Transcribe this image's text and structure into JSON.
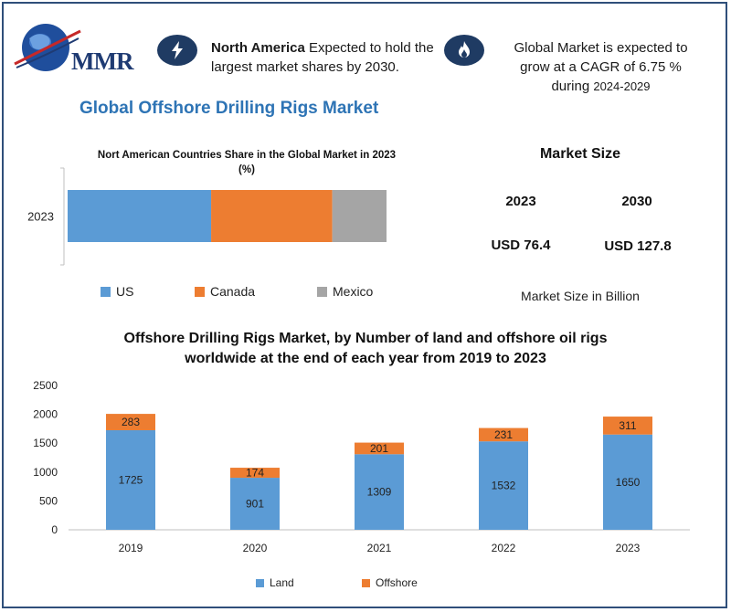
{
  "header": {
    "logo_text": "MMR",
    "highlight_left": {
      "bold": "North America",
      "rest": " Expected to hold the largest market shares by 2030."
    },
    "highlight_right": {
      "line1": "Global Market is expected to",
      "line2": "grow at a CAGR of 6.75 %",
      "line3a": "during ",
      "line3b": "2024-2029"
    }
  },
  "main_title": "Global Offshore Drilling Rigs Market",
  "market_size": {
    "heading": "Market Size",
    "year_a": "2023",
    "year_b": "2030",
    "value_a": "USD 76.4",
    "value_b": "USD 127.8",
    "note": "Market Size in Billion"
  },
  "colors": {
    "us": "#5b9bd5",
    "canada": "#ed7d31",
    "mexico": "#a5a5a5",
    "land": "#5b9bd5",
    "offshore": "#ed7d31",
    "title_blue": "#2e74b5",
    "badge": "#1f3b63"
  },
  "icons": {
    "logo": "globe-icon",
    "left_badge": "lightning-icon",
    "right_badge": "flame-icon"
  },
  "chart_data": [
    {
      "type": "bar",
      "orientation": "horizontal",
      "stacked": true,
      "title_line1": "Nort American Countries Share in the Global Market in 2023",
      "title_line2": "(%)",
      "categories": [
        "2023"
      ],
      "series": [
        {
          "name": "US",
          "values": [
            45
          ]
        },
        {
          "name": "Canada",
          "values": [
            38
          ]
        },
        {
          "name": "Mexico",
          "values": [
            17
          ]
        }
      ],
      "xlim": [
        0,
        100
      ],
      "legend": "bottom"
    },
    {
      "type": "bar",
      "stacked": true,
      "title_line1": "Offshore Drilling Rigs Market, by Number of land and offshore oil rigs",
      "title_line2": "worldwide at the end of each year from 2019 to 2023",
      "categories": [
        "2019",
        "2020",
        "2021",
        "2022",
        "2023"
      ],
      "series": [
        {
          "name": "Land",
          "values": [
            1725,
            901,
            1309,
            1532,
            1650
          ]
        },
        {
          "name": "Offshore",
          "values": [
            283,
            174,
            201,
            231,
            311
          ]
        }
      ],
      "yticks": [
        "0",
        "500",
        "1000",
        "1500",
        "2000",
        "2500"
      ],
      "ylim": [
        0,
        2500
      ],
      "legend": "bottom"
    }
  ]
}
